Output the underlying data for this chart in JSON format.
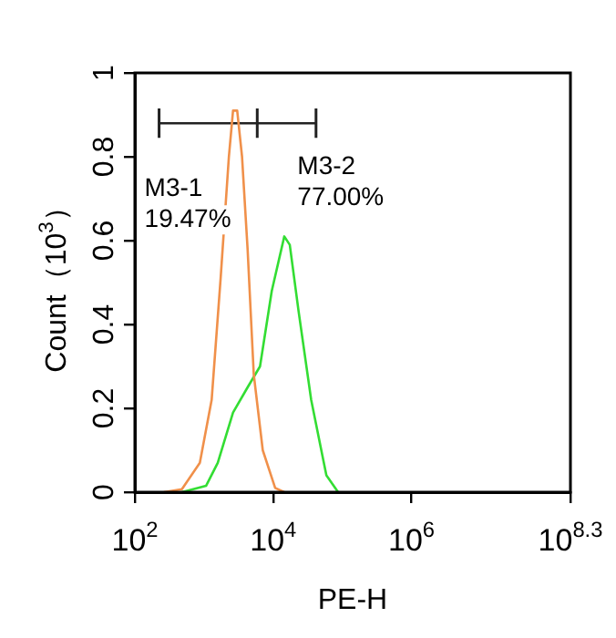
{
  "chart_data": {
    "type": "line",
    "xlabel": "PE-H",
    "ylabel": "Count（10$^{3}$）",
    "log": "x",
    "xlim": [
      100,
      199526231
    ],
    "ylim": [
      0,
      1
    ],
    "xticks": [
      {
        "value": 100,
        "label": "10$^{2}$"
      },
      {
        "value": 10000,
        "label": "10$^{4}$"
      },
      {
        "value": 1000000,
        "label": "10$^{6}$"
      },
      {
        "value": 199526231,
        "label": "10$^{8.3}$"
      }
    ],
    "yticks": [
      0,
      0.2,
      0.4,
      0.6,
      0.8,
      1
    ],
    "grid": false,
    "legend": false,
    "marker": "none",
    "line_style": "solid",
    "series": [
      {
        "color": "#f0904a",
        "x": [
          263,
          479,
          871,
          1290,
          1740,
          2290,
          2630,
          3020,
          3550,
          4270,
          5250,
          7080,
          10700,
          14500
        ],
        "values": [
          0,
          0.007,
          0.07,
          0.22,
          0.51,
          0.8,
          0.91,
          0.91,
          0.8,
          0.58,
          0.28,
          0.1,
          0.01,
          0
        ]
      },
      {
        "color": "#33dd33",
        "x": [
          479,
          1070,
          1580,
          2630,
          4270,
          6460,
          9550,
          14500,
          17400,
          23400,
          35500,
          58900,
          87100
        ],
        "values": [
          0,
          0.015,
          0.07,
          0.19,
          0.25,
          0.3,
          0.48,
          0.61,
          0.59,
          0.43,
          0.22,
          0.04,
          0
        ]
      },
      {
        "color": "#222222",
        "x": [
          224,
          5890,
          41700
        ],
        "values": [
          0.88,
          0.88,
          0.88
        ],
        "errors": [
          0.035,
          0.035,
          0.035
        ]
      }
    ],
    "annotations": [
      "M3-1\n19.47%",
      "M3-2\n77.00%"
    ]
  }
}
